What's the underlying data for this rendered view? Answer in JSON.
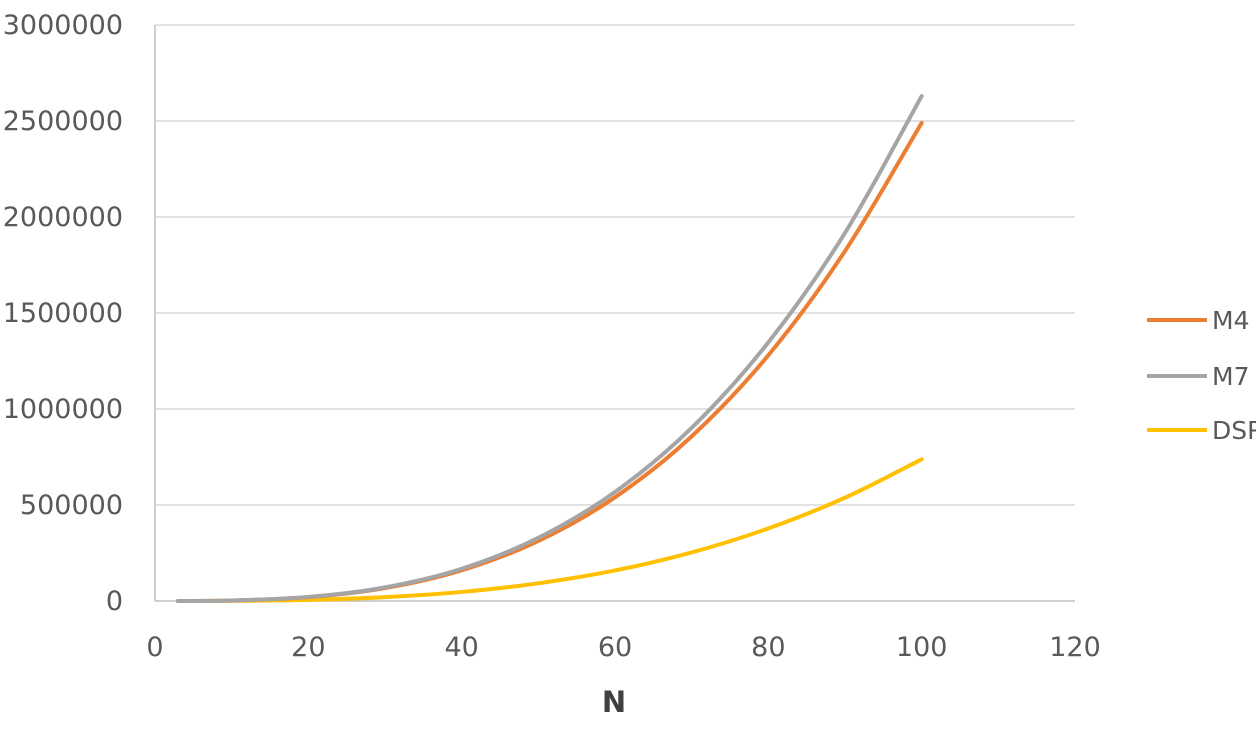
{
  "chart_data": {
    "type": "line",
    "title": "",
    "xlabel": "N",
    "ylabel": "",
    "xlim": [
      0,
      120
    ],
    "ylim": [
      0,
      3000000
    ],
    "xticks": [
      0,
      20,
      40,
      60,
      80,
      100,
      120
    ],
    "yticks": [
      0,
      500000,
      1000000,
      1500000,
      2000000,
      2500000,
      3000000
    ],
    "grid": "horizontal",
    "legend_position": "right",
    "series": [
      {
        "name": "M4",
        "color": "#ED7D31",
        "x": [
          3,
          10,
          20,
          30,
          40,
          50,
          60,
          70,
          80,
          90,
          100
        ],
        "y": [
          67,
          2500,
          20000,
          67500,
          160000,
          312500,
          540000,
          857500,
          1280000,
          1822500,
          2490000
        ]
      },
      {
        "name": "M7",
        "color": "#A5A5A5",
        "x": [
          3,
          10,
          20,
          30,
          40,
          50,
          60,
          70,
          80,
          90,
          100
        ],
        "y": [
          71,
          2630,
          21000,
          71000,
          168000,
          329000,
          568000,
          902000,
          1347000,
          1917000,
          2630000
        ]
      },
      {
        "name": "DSP",
        "color": "#FFC000",
        "x": [
          3,
          10,
          20,
          30,
          40,
          50,
          60,
          70,
          80,
          90,
          100
        ],
        "y": [
          20,
          740,
          5900,
          20000,
          47200,
          92200,
          159000,
          253000,
          378000,
          538000,
          738000
        ]
      }
    ]
  }
}
